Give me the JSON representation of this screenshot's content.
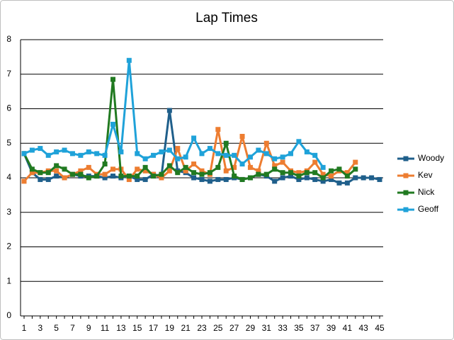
{
  "chart_data": {
    "type": "line",
    "title": "Lap Times",
    "categories": [
      1,
      null,
      3,
      null,
      5,
      null,
      7,
      null,
      9,
      null,
      11,
      null,
      13,
      null,
      15,
      null,
      17,
      null,
      19,
      null,
      21,
      null,
      23,
      null,
      25,
      null,
      27,
      null,
      29,
      null,
      31,
      null,
      33,
      null,
      35,
      null,
      37,
      null,
      39,
      null,
      41,
      null,
      43,
      null,
      45
    ],
    "series": [
      {
        "name": "Woody",
        "color": "#1f5f8b",
        "values": [
          4.7,
          4.15,
          3.95,
          3.95,
          4.05,
          4.0,
          4.1,
          4.05,
          4.05,
          4.05,
          4.0,
          4.05,
          4.0,
          4.05,
          3.95,
          3.95,
          4.1,
          4.05,
          5.95,
          4.2,
          4.15,
          4.0,
          3.95,
          3.9,
          3.95,
          3.95,
          4.0,
          3.95,
          4.0,
          4.1,
          4.05,
          3.9,
          4.0,
          4.05,
          3.95,
          4.0,
          3.95,
          3.9,
          3.95,
          3.85,
          3.85,
          4.0,
          4.0,
          4.0,
          3.95
        ]
      },
      {
        "name": "Kev",
        "color": "#ed7d31",
        "values": [
          3.9,
          4.15,
          4.15,
          4.2,
          4.2,
          4.0,
          4.1,
          4.2,
          4.3,
          4.1,
          4.1,
          4.25,
          4.25,
          3.95,
          4.25,
          4.2,
          4.1,
          4.0,
          4.2,
          4.85,
          4.2,
          4.4,
          4.2,
          4.1,
          5.4,
          4.2,
          4.3,
          5.2,
          4.3,
          4.2,
          5.0,
          4.35,
          4.45,
          4.2,
          4.15,
          4.2,
          4.45,
          4.1,
          4.05,
          4.2,
          4.15,
          4.45,
          null,
          null,
          null
        ]
      },
      {
        "name": "Nick",
        "color": "#217a21",
        "values": [
          4.7,
          4.25,
          4.15,
          4.15,
          4.35,
          4.25,
          4.1,
          4.1,
          4.0,
          4.05,
          4.4,
          6.85,
          4.05,
          4.05,
          4.05,
          4.3,
          4.05,
          4.1,
          4.35,
          4.15,
          4.3,
          4.15,
          4.1,
          4.15,
          4.3,
          5.0,
          4.05,
          3.95,
          4.0,
          4.1,
          4.1,
          4.25,
          4.15,
          4.15,
          4.05,
          4.15,
          4.15,
          4.0,
          4.2,
          4.25,
          4.05,
          4.25,
          null,
          null,
          null
        ]
      },
      {
        "name": "Geoff",
        "color": "#1fa2d9",
        "values": [
          4.7,
          4.8,
          4.85,
          4.65,
          4.75,
          4.8,
          4.7,
          4.65,
          4.75,
          4.7,
          4.65,
          5.55,
          4.75,
          7.4,
          4.7,
          4.55,
          4.65,
          4.75,
          4.8,
          4.55,
          4.6,
          5.15,
          4.7,
          4.85,
          4.7,
          4.65,
          4.65,
          4.4,
          4.6,
          4.8,
          4.7,
          4.55,
          4.6,
          4.7,
          5.05,
          4.75,
          4.65,
          4.3,
          null,
          null,
          null,
          null,
          null,
          null,
          null
        ]
      }
    ],
    "ylim": [
      0,
      8
    ],
    "yticks": [
      0,
      1,
      2,
      3,
      4,
      5,
      6,
      7,
      8
    ],
    "grid": true,
    "legend": "right"
  }
}
